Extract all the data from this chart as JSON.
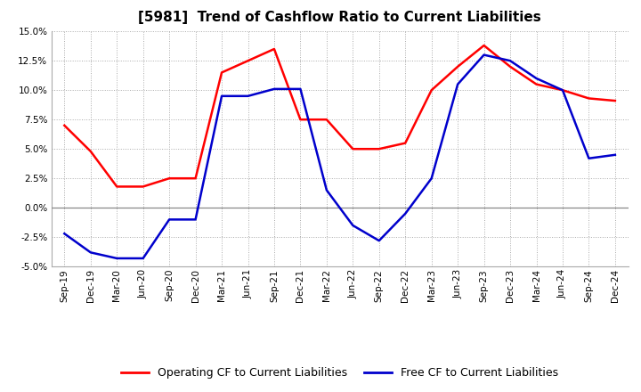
{
  "title": "[5981]  Trend of Cashflow Ratio to Current Liabilities",
  "x_labels": [
    "Sep-19",
    "Dec-19",
    "Mar-20",
    "Jun-20",
    "Sep-20",
    "Dec-20",
    "Mar-21",
    "Jun-21",
    "Sep-21",
    "Dec-21",
    "Mar-22",
    "Jun-22",
    "Sep-22",
    "Dec-22",
    "Mar-23",
    "Jun-23",
    "Sep-23",
    "Dec-23",
    "Mar-24",
    "Jun-24",
    "Sep-24",
    "Dec-24"
  ],
  "operating_cf": [
    0.07,
    0.048,
    0.018,
    0.018,
    0.025,
    0.025,
    0.115,
    0.125,
    0.135,
    0.075,
    0.075,
    0.05,
    0.05,
    0.055,
    0.1,
    0.12,
    0.138,
    0.12,
    0.105,
    0.1,
    0.093,
    0.091
  ],
  "free_cf": [
    -0.022,
    -0.038,
    -0.043,
    -0.043,
    -0.01,
    -0.01,
    0.095,
    0.095,
    0.101,
    0.101,
    0.015,
    -0.015,
    -0.028,
    -0.005,
    0.025,
    0.105,
    0.13,
    0.125,
    0.11,
    0.1,
    0.042,
    0.045
  ],
  "operating_color": "#ff0000",
  "free_color": "#0000cc",
  "ylim_min": -0.05,
  "ylim_max": 0.15,
  "yticks": [
    -0.05,
    -0.025,
    0.0,
    0.025,
    0.05,
    0.075,
    0.1,
    0.125,
    0.15
  ],
  "legend_operating": "Operating CF to Current Liabilities",
  "legend_free": "Free CF to Current Liabilities",
  "background_color": "#ffffff",
  "grid_color": "#aaaaaa",
  "title_fontsize": 11,
  "tick_fontsize": 7.5,
  "legend_fontsize": 9
}
